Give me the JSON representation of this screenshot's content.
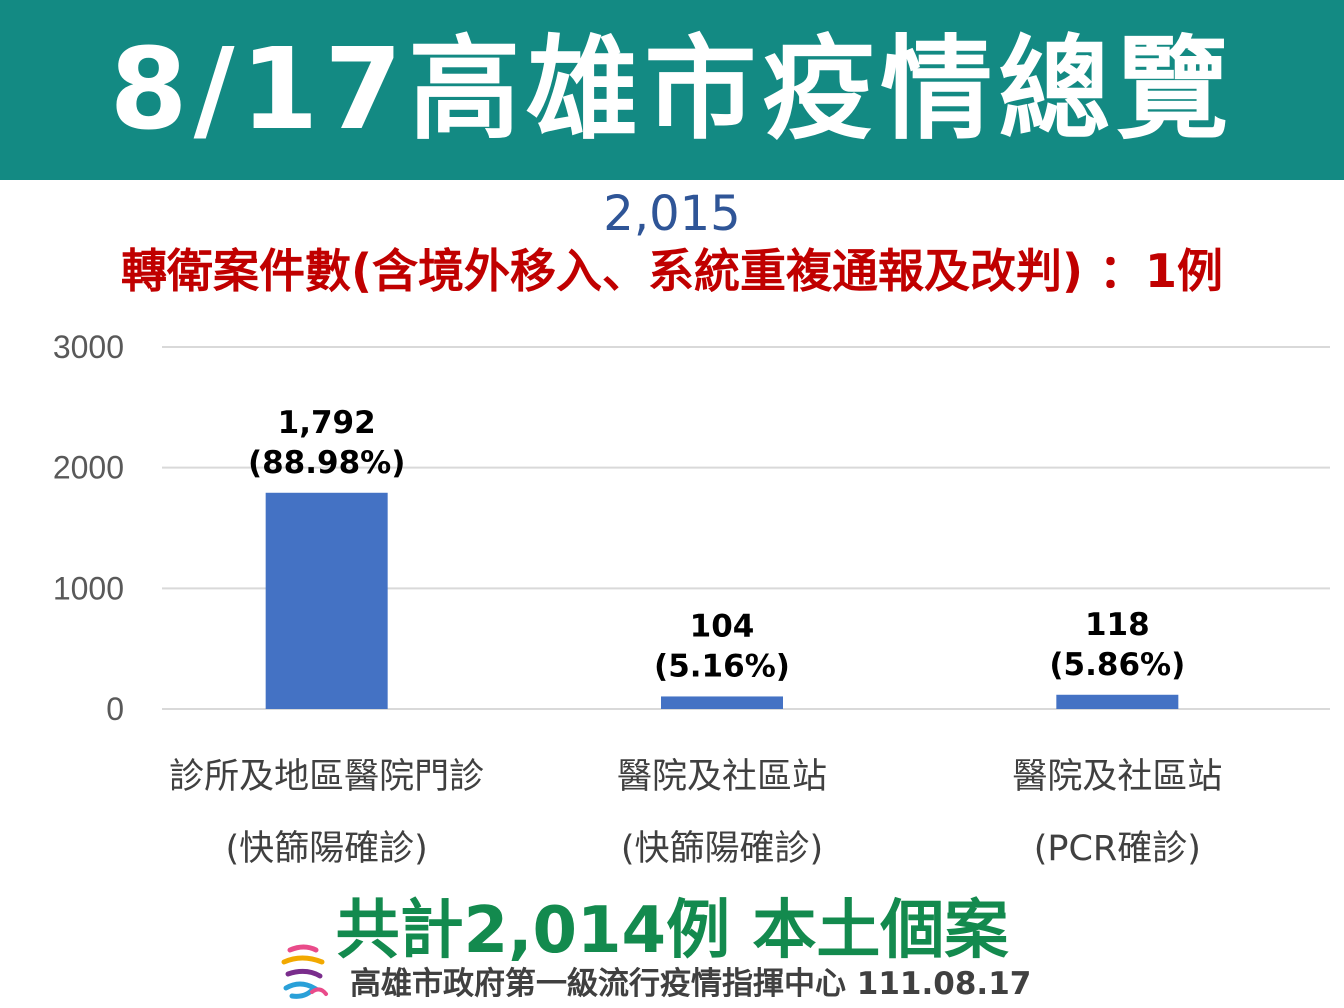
{
  "header": {
    "title": "8/17高雄市疫情總覽"
  },
  "subtitle": {
    "total": "2,015",
    "transfer_note": "轉衛案件數(含境外移入、系統重複通報及改判)   ：1例"
  },
  "chart_data": {
    "type": "bar",
    "categories": [
      [
        "診所及地區醫院門診",
        "(快篩陽確診)"
      ],
      [
        "醫院及社區站",
        "(快篩陽確診)"
      ],
      [
        "醫院及社區站",
        "(PCR確診)"
      ]
    ],
    "values": [
      1792,
      104,
      118
    ],
    "data_labels": [
      [
        "1,792",
        "(88.98%)"
      ],
      [
        "104",
        "(5.16%)"
      ],
      [
        "118",
        "(5.86%)"
      ]
    ],
    "yticks": [
      "3000",
      "2000",
      "1000",
      "0"
    ],
    "ylim": [
      0,
      3000
    ],
    "grid": true,
    "bar_color": "#4472c4",
    "grid_color": "#d9d9d9"
  },
  "footer": {
    "total": "共計2,014例 本土個案",
    "source": "高雄市政府第一級流行疫情指揮中心 111.08.17"
  },
  "colors": {
    "header_bg": "#138a83",
    "total_text": "#2f5597",
    "note_text": "#c00000",
    "footer_total_text": "#138a4e"
  }
}
